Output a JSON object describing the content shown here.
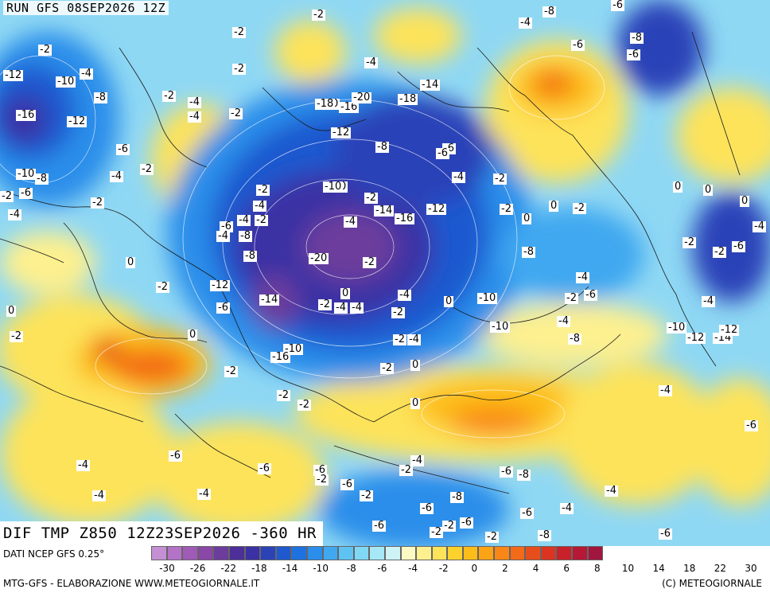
{
  "header": {
    "run_title": "RUN GFS 08SEP2026 12Z",
    "field_title": "DIF TMP Z850 12Z23SEP2026 -360 HR"
  },
  "map_labels": [
    {
      "v": "-2"
    },
    {
      "v": "-8"
    },
    {
      "v": "-6"
    },
    {
      "v": "-4"
    },
    {
      "v": "-2"
    },
    {
      "v": "-8"
    },
    {
      "v": "-6"
    },
    {
      "v": "-6"
    },
    {
      "v": "-4"
    },
    {
      "v": "-2"
    },
    {
      "v": "-2"
    },
    {
      "v": "-12"
    },
    {
      "v": "-10"
    },
    {
      "v": "-4"
    },
    {
      "v": "-8"
    },
    {
      "v": "-2"
    },
    {
      "v": "-4"
    },
    {
      "v": "-4"
    },
    {
      "v": "-2"
    },
    {
      "v": "-10"
    },
    {
      "v": "-16"
    },
    {
      "v": "-12"
    },
    {
      "v": "-6"
    },
    {
      "v": "-2"
    },
    {
      "v": "-10"
    },
    {
      "v": "-8"
    },
    {
      "v": "-6"
    },
    {
      "v": "-4"
    },
    {
      "v": "-2"
    },
    {
      "v": "-2"
    },
    {
      "v": "-4"
    },
    {
      "v": "0"
    },
    {
      "v": "-2"
    },
    {
      "v": "0"
    },
    {
      "v": "-2"
    },
    {
      "v": "0"
    },
    {
      "v": "-2"
    },
    {
      "v": "-2"
    },
    {
      "v": "-4"
    },
    {
      "v": "-6"
    },
    {
      "v": "-4"
    },
    {
      "v": "-2"
    },
    {
      "v": "-4"
    },
    {
      "v": "-8"
    },
    {
      "v": "-6"
    },
    {
      "v": "-8"
    },
    {
      "v": "-12"
    },
    {
      "v": "-10"
    },
    {
      "v": "-14"
    },
    {
      "v": "-16"
    },
    {
      "v": "-18"
    },
    {
      "v": "-16"
    },
    {
      "v": "-20"
    },
    {
      "v": "-18"
    },
    {
      "v": "-14"
    },
    {
      "v": "-12"
    },
    {
      "v": "-10"
    },
    {
      "v": "-8"
    },
    {
      "v": "-6"
    },
    {
      "v": "-6"
    },
    {
      "v": "-4"
    },
    {
      "v": "-2"
    },
    {
      "v": "-2"
    },
    {
      "v": "0"
    },
    {
      "v": "0"
    },
    {
      "v": "-2"
    },
    {
      "v": "0"
    },
    {
      "v": "0"
    },
    {
      "v": "0"
    },
    {
      "v": "-4"
    },
    {
      "v": "-2"
    },
    {
      "v": "-2"
    },
    {
      "v": "-6"
    },
    {
      "v": "-8"
    },
    {
      "v": "-4"
    },
    {
      "v": "-2"
    },
    {
      "v": "-6"
    },
    {
      "v": "-4"
    },
    {
      "v": "-4"
    },
    {
      "v": "-10"
    },
    {
      "v": "-12"
    },
    {
      "v": "-14"
    },
    {
      "v": "-12"
    },
    {
      "v": "-10"
    },
    {
      "v": "-10"
    },
    {
      "v": "-8"
    },
    {
      "v": "-4"
    },
    {
      "v": "-6"
    },
    {
      "v": "-2"
    },
    {
      "v": "-14"
    },
    {
      "v": "-16"
    },
    {
      "v": "-12"
    },
    {
      "v": "-10"
    },
    {
      "v": "-4"
    },
    {
      "v": "-20"
    },
    {
      "v": "-2"
    },
    {
      "v": "0"
    },
    {
      "v": "-2"
    },
    {
      "v": "-4"
    },
    {
      "v": "-4"
    },
    {
      "v": "-2"
    },
    {
      "v": "0"
    },
    {
      "v": "-2"
    },
    {
      "v": "-4"
    },
    {
      "v": "-2"
    },
    {
      "v": "0"
    },
    {
      "v": "0"
    },
    {
      "v": "-2"
    },
    {
      "v": "-2"
    },
    {
      "v": "-4"
    },
    {
      "v": "-6"
    },
    {
      "v": "-4"
    },
    {
      "v": "-4"
    },
    {
      "v": "-6"
    },
    {
      "v": "-4"
    },
    {
      "v": "-6"
    },
    {
      "v": "-2"
    },
    {
      "v": "-2"
    },
    {
      "v": "-4"
    },
    {
      "v": "-6"
    },
    {
      "v": "-8"
    },
    {
      "v": "-6"
    },
    {
      "v": "-2"
    },
    {
      "v": "-6"
    },
    {
      "v": "-8"
    },
    {
      "v": "-6"
    },
    {
      "v": "-4"
    },
    {
      "v": "-4"
    },
    {
      "v": "-6"
    },
    {
      "v": "-2"
    },
    {
      "v": "-2"
    },
    {
      "v": "-6"
    },
    {
      "v": "-2"
    },
    {
      "v": "-8"
    },
    {
      "v": "-6"
    },
    {
      "v": "-4"
    },
    {
      "v": "-8"
    },
    {
      "v": "-10"
    },
    {
      "v": "-4"
    },
    {
      "v": "-6"
    },
    {
      "v": "-2"
    },
    {
      "v": "-6"
    },
    {
      "v": "-4"
    },
    {
      "v": "-4"
    },
    {
      "v": "-6"
    },
    {
      "v": "-2"
    },
    {
      "v": "0"
    },
    {
      "v": "0"
    },
    {
      "v": "-2"
    },
    {
      "v": "-4"
    },
    {
      "v": "-6"
    },
    {
      "v": "-8"
    },
    {
      "v": "-6"
    },
    {
      "v": "-4"
    },
    {
      "v": "-4"
    },
    {
      "v": "-2"
    }
  ],
  "legend": {
    "source": "DATI NCEP GFS 0.25°",
    "credit_left": "MTG-GFS - ELABORAZIONE WWW.METEOGIORNALE.IT",
    "credit_right": "(C) METEOGIORNALE",
    "colors": [
      "#c58fd4",
      "#b473c6",
      "#9f5bb6",
      "#8a47a8",
      "#6c3d9c",
      "#4c2f98",
      "#3a32a4",
      "#2c43b8",
      "#1f59cf",
      "#1e72e0",
      "#2a8eea",
      "#40a8f0",
      "#5ec3f3",
      "#80d8f5",
      "#a6e8f6",
      "#cdf3f6",
      "#fdf9c2",
      "#fdf08f",
      "#fde35a",
      "#fdd22c",
      "#fdbd19",
      "#fca316",
      "#f98717",
      "#f36a19",
      "#e84e1c",
      "#db3420",
      "#c9212a",
      "#b51935",
      "#a0163e"
    ],
    "ticks": [
      "-30",
      "-26",
      "-22",
      "-18",
      "-14",
      "-10",
      "-8",
      "-6",
      "-4",
      "-2",
      "0",
      "2",
      "4",
      "6",
      "8",
      "10",
      "14",
      "18",
      "22",
      "30"
    ]
  }
}
